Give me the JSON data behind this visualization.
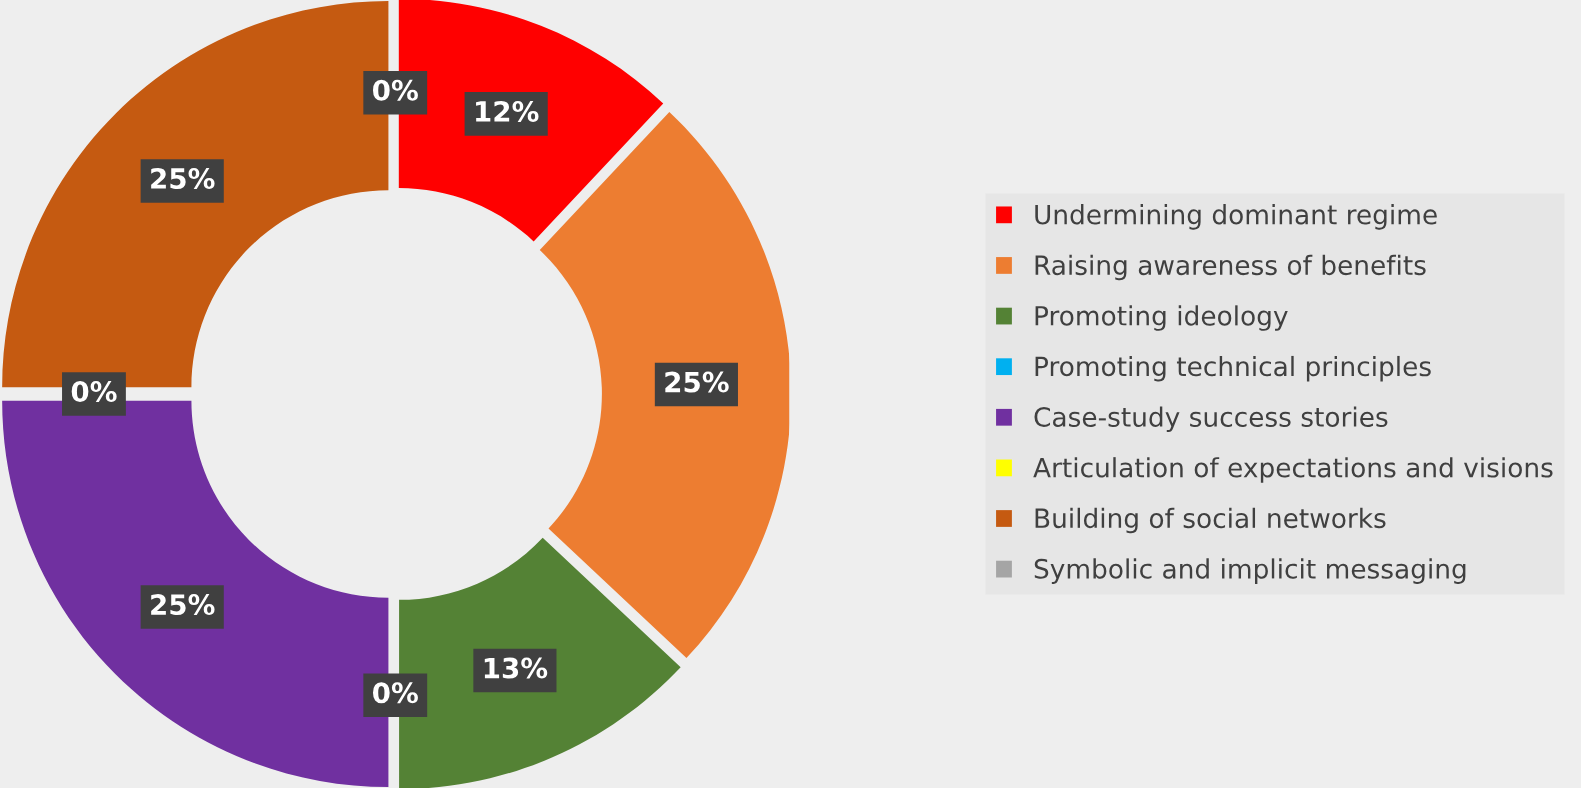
{
  "chart_data": {
    "type": "donut",
    "categories": [
      "Undermining dominant regime",
      "Raising awareness of benefits",
      "Promoting ideology",
      "Promoting technical principles",
      "Case-study success stories",
      "Articulation of expectations and visions",
      "Building of social networks",
      "Symbolic and implicit messaging"
    ],
    "values": [
      12,
      25,
      13,
      0,
      25,
      0,
      25,
      0
    ],
    "value_labels": [
      "12%",
      "25%",
      "13%",
      "0%",
      "25%",
      "0%",
      "25%",
      "0%"
    ],
    "colors": [
      "#ff0000",
      "#ed7d31",
      "#548235",
      "#00b0f0",
      "#7030a0",
      "#ffff00",
      "#c55a11",
      "#a5a5a5"
    ],
    "legend": "right"
  }
}
